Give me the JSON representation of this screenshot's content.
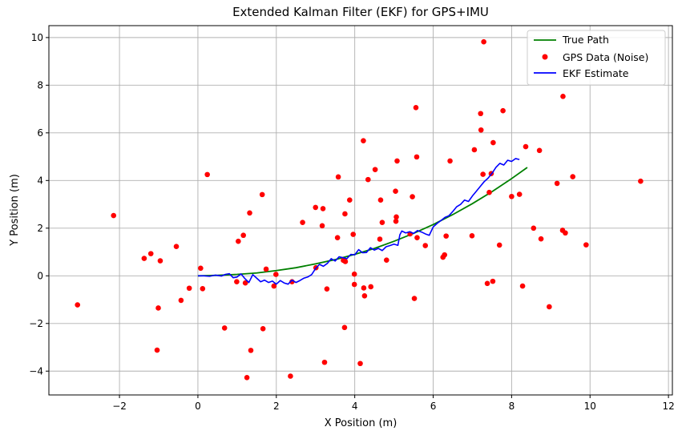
{
  "chart_data": {
    "type": "scatter",
    "title": "Extended Kalman Filter (EKF) for GPS+IMU",
    "xlabel": "X Position (m)",
    "ylabel": "Y Position (m)",
    "xlim": [
      -3.8,
      12.1
    ],
    "ylim": [
      -5.0,
      10.5
    ],
    "xticks": [
      -2,
      0,
      2,
      4,
      6,
      8,
      10,
      12
    ],
    "yticks": [
      -4,
      -2,
      0,
      2,
      4,
      6,
      8,
      10
    ],
    "grid": true,
    "legend_position": "top-right",
    "colors": {
      "true_path": "#008000",
      "gps": "#ff0000",
      "ekf": "#0000ff",
      "grid": "#b0b0b0"
    },
    "series": [
      {
        "name": "True Path",
        "kind": "line",
        "x": [
          0.0,
          0.5,
          1.0,
          1.5,
          2.0,
          2.5,
          3.0,
          3.5,
          4.0,
          4.5,
          5.0,
          5.5,
          6.0,
          6.5,
          7.0,
          7.5,
          8.0,
          8.4
        ],
        "y": [
          0.0,
          0.02,
          0.06,
          0.12,
          0.22,
          0.34,
          0.5,
          0.68,
          0.9,
          1.15,
          1.45,
          1.78,
          2.15,
          2.57,
          3.03,
          3.53,
          4.08,
          4.55
        ]
      },
      {
        "name": "GPS Data (Noise)",
        "kind": "scatter",
        "points": [
          [
            -3.07,
            -1.22
          ],
          [
            -2.15,
            2.53
          ],
          [
            -1.37,
            0.73
          ],
          [
            -1.2,
            0.93
          ],
          [
            -1.04,
            -3.12
          ],
          [
            -1.01,
            -1.35
          ],
          [
            -0.96,
            0.63
          ],
          [
            -0.55,
            1.23
          ],
          [
            -0.43,
            -1.03
          ],
          [
            -0.22,
            -0.52
          ],
          [
            0.07,
            0.32
          ],
          [
            0.12,
            -0.54
          ],
          [
            0.24,
            4.25
          ],
          [
            0.68,
            -2.19
          ],
          [
            0.99,
            -0.25
          ],
          [
            1.03,
            1.45
          ],
          [
            1.16,
            1.7
          ],
          [
            1.21,
            -0.3
          ],
          [
            1.25,
            -4.27
          ],
          [
            1.32,
            2.64
          ],
          [
            1.35,
            -3.13
          ],
          [
            1.64,
            3.41
          ],
          [
            1.66,
            -2.22
          ],
          [
            1.74,
            0.28
          ],
          [
            1.94,
            -0.43
          ],
          [
            1.99,
            0.06
          ],
          [
            2.36,
            -4.21
          ],
          [
            2.4,
            -0.25
          ],
          [
            2.67,
            2.24
          ],
          [
            3.0,
            2.87
          ],
          [
            3.01,
            0.34
          ],
          [
            3.17,
            2.1
          ],
          [
            3.19,
            2.82
          ],
          [
            3.23,
            -3.63
          ],
          [
            3.29,
            -0.55
          ],
          [
            3.56,
            1.6
          ],
          [
            3.58,
            4.15
          ],
          [
            3.71,
            0.65
          ],
          [
            3.75,
            2.6
          ],
          [
            3.74,
            -2.17
          ],
          [
            3.76,
            0.6
          ],
          [
            3.87,
            3.18
          ],
          [
            3.96,
            1.74
          ],
          [
            3.99,
            0.07
          ],
          [
            3.99,
            -0.36
          ],
          [
            4.14,
            -3.68
          ],
          [
            4.22,
            5.67
          ],
          [
            4.23,
            -0.51
          ],
          [
            4.25,
            -0.84
          ],
          [
            4.34,
            4.04
          ],
          [
            4.41,
            -0.46
          ],
          [
            4.52,
            4.46
          ],
          [
            4.64,
            1.54
          ],
          [
            4.66,
            3.18
          ],
          [
            4.7,
            2.24
          ],
          [
            4.81,
            0.66
          ],
          [
            5.04,
            3.55
          ],
          [
            5.05,
            2.29
          ],
          [
            5.06,
            2.47
          ],
          [
            5.08,
            4.82
          ],
          [
            5.41,
            1.76
          ],
          [
            5.47,
            3.32
          ],
          [
            5.52,
            -0.95
          ],
          [
            5.56,
            7.06
          ],
          [
            5.58,
            4.99
          ],
          [
            5.59,
            1.6
          ],
          [
            5.8,
            1.27
          ],
          [
            6.25,
            0.78
          ],
          [
            6.29,
            0.88
          ],
          [
            6.33,
            1.67
          ],
          [
            6.43,
            4.82
          ],
          [
            6.99,
            1.68
          ],
          [
            7.05,
            5.29
          ],
          [
            7.21,
            6.81
          ],
          [
            7.22,
            6.12
          ],
          [
            7.27,
            4.26
          ],
          [
            7.29,
            9.82
          ],
          [
            7.38,
            -0.32
          ],
          [
            7.43,
            3.5
          ],
          [
            7.48,
            4.29
          ],
          [
            7.52,
            -0.23
          ],
          [
            7.53,
            5.59
          ],
          [
            7.69,
            1.29
          ],
          [
            7.78,
            6.93
          ],
          [
            8.0,
            3.33
          ],
          [
            8.2,
            3.42
          ],
          [
            8.28,
            -0.43
          ],
          [
            8.36,
            5.42
          ],
          [
            8.56,
            2.0
          ],
          [
            8.71,
            5.26
          ],
          [
            8.75,
            1.55
          ],
          [
            8.96,
            -1.3
          ],
          [
            9.16,
            3.88
          ],
          [
            9.3,
            1.91
          ],
          [
            9.31,
            7.53
          ],
          [
            9.37,
            1.8
          ],
          [
            9.56,
            4.16
          ],
          [
            9.9,
            1.3
          ],
          [
            11.29,
            3.97
          ]
        ]
      },
      {
        "name": "EKF Estimate",
        "kind": "line",
        "x": [
          0.0,
          0.15,
          0.3,
          0.45,
          0.6,
          0.7,
          0.8,
          0.9,
          1.0,
          1.1,
          1.2,
          1.3,
          1.4,
          1.5,
          1.6,
          1.7,
          1.8,
          1.9,
          2.0,
          2.1,
          2.2,
          2.3,
          2.4,
          2.5,
          2.6,
          2.7,
          2.8,
          2.9,
          3.0,
          3.1,
          3.2,
          3.3,
          3.4,
          3.5,
          3.6,
          3.7,
          3.8,
          3.9,
          4.0,
          4.1,
          4.2,
          4.3,
          4.4,
          4.5,
          4.6,
          4.7,
          4.8,
          4.9,
          5.0,
          5.1,
          5.15,
          5.2,
          5.3,
          5.4,
          5.5,
          5.6,
          5.7,
          5.8,
          5.9,
          6.0,
          6.1,
          6.2,
          6.3,
          6.4,
          6.5,
          6.6,
          6.7,
          6.8,
          6.9,
          7.0,
          7.1,
          7.2,
          7.3,
          7.4,
          7.5,
          7.6,
          7.7,
          7.8,
          7.9,
          8.0,
          8.1,
          8.2
        ],
        "y": [
          0.0,
          0.0,
          -0.02,
          0.03,
          -0.01,
          0.06,
          0.09,
          -0.08,
          -0.05,
          0.08,
          -0.12,
          -0.28,
          0.05,
          -0.1,
          -0.25,
          -0.18,
          -0.28,
          -0.22,
          -0.35,
          -0.2,
          -0.3,
          -0.35,
          -0.18,
          -0.28,
          -0.2,
          -0.1,
          -0.05,
          0.05,
          0.3,
          0.48,
          0.4,
          0.52,
          0.72,
          0.62,
          0.8,
          0.76,
          0.72,
          0.9,
          0.88,
          1.1,
          0.97,
          0.98,
          1.18,
          1.08,
          1.15,
          1.06,
          1.22,
          1.27,
          1.33,
          1.28,
          1.72,
          1.88,
          1.8,
          1.85,
          1.78,
          1.9,
          1.84,
          1.76,
          1.7,
          2.05,
          2.2,
          2.32,
          2.45,
          2.52,
          2.7,
          2.9,
          3.0,
          3.18,
          3.12,
          3.35,
          3.55,
          3.75,
          3.95,
          4.1,
          4.3,
          4.55,
          4.72,
          4.65,
          4.85,
          4.8,
          4.92,
          4.88
        ]
      }
    ]
  }
}
